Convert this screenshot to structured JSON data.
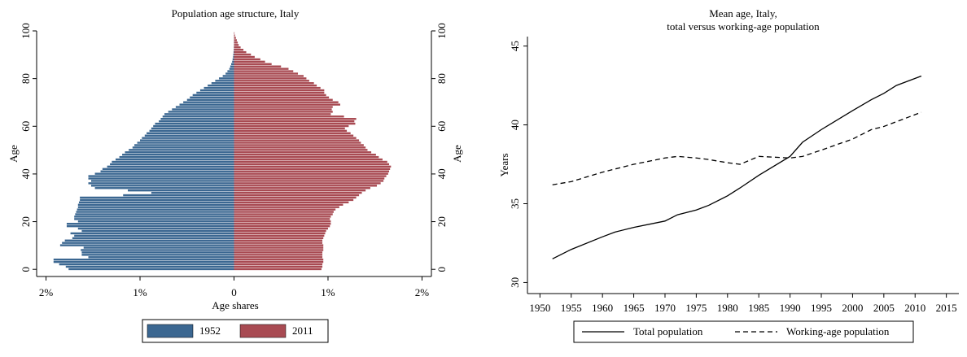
{
  "chart_data": [
    {
      "type": "pyramid",
      "title": "Population age structure, Italy",
      "xlabel": "Age shares",
      "ylabel": "Age",
      "ages": [
        0,
        1,
        2,
        3,
        4,
        5,
        6,
        7,
        8,
        9,
        10,
        11,
        12,
        13,
        14,
        15,
        16,
        17,
        18,
        19,
        20,
        21,
        22,
        23,
        24,
        25,
        26,
        27,
        28,
        29,
        30,
        31,
        32,
        33,
        34,
        35,
        36,
        37,
        38,
        39,
        40,
        41,
        42,
        43,
        44,
        45,
        46,
        47,
        48,
        49,
        50,
        51,
        52,
        53,
        54,
        55,
        56,
        57,
        58,
        59,
        60,
        61,
        62,
        63,
        64,
        65,
        66,
        67,
        68,
        69,
        70,
        71,
        72,
        73,
        74,
        75,
        76,
        77,
        78,
        79,
        80,
        81,
        82,
        83,
        84,
        85,
        86,
        87,
        88,
        89,
        90,
        91,
        92,
        93,
        94,
        95,
        96,
        97,
        98,
        99
      ],
      "series": [
        {
          "name": "1952",
          "color": "#3b6791",
          "values": [
            1.76,
            1.79,
            1.86,
            1.92,
            1.92,
            1.55,
            1.62,
            1.62,
            1.63,
            1.6,
            1.85,
            1.83,
            1.8,
            1.72,
            1.7,
            1.74,
            1.62,
            1.66,
            1.78,
            1.78,
            1.66,
            1.7,
            1.7,
            1.69,
            1.68,
            1.67,
            1.66,
            1.66,
            1.65,
            1.64,
            1.64,
            1.18,
            0.88,
            1.13,
            1.48,
            1.52,
            1.55,
            1.52,
            1.55,
            1.55,
            1.48,
            1.42,
            1.4,
            1.35,
            1.32,
            1.3,
            1.26,
            1.22,
            1.19,
            1.16,
            1.12,
            1.08,
            1.06,
            1.03,
            1.0,
            0.98,
            0.95,
            0.93,
            0.9,
            0.88,
            0.86,
            0.84,
            0.8,
            0.78,
            0.76,
            0.74,
            0.7,
            0.66,
            0.62,
            0.58,
            0.54,
            0.5,
            0.47,
            0.44,
            0.4,
            0.36,
            0.32,
            0.28,
            0.24,
            0.2,
            0.16,
            0.12,
            0.09,
            0.07,
            0.05,
            0.04,
            0.03,
            0.02,
            0.015,
            0.01,
            0.008,
            0.005,
            0.003,
            0.002,
            0.001,
            0.001,
            0.0005,
            0.0003,
            0.0002,
            0.0001
          ]
        },
        {
          "name": "2011",
          "color": "#a84a52",
          "values": [
            0.93,
            0.94,
            0.94,
            0.95,
            0.95,
            0.94,
            0.94,
            0.94,
            0.95,
            0.95,
            0.95,
            0.94,
            0.94,
            0.95,
            0.96,
            0.97,
            0.98,
            1.0,
            1.02,
            1.03,
            1.03,
            1.02,
            1.03,
            1.05,
            1.06,
            1.08,
            1.12,
            1.16,
            1.22,
            1.27,
            1.3,
            1.33,
            1.36,
            1.4,
            1.45,
            1.52,
            1.56,
            1.59,
            1.6,
            1.62,
            1.64,
            1.65,
            1.66,
            1.67,
            1.65,
            1.63,
            1.58,
            1.54,
            1.51,
            1.46,
            1.42,
            1.4,
            1.38,
            1.35,
            1.33,
            1.3,
            1.27,
            1.24,
            1.2,
            1.18,
            1.22,
            1.29,
            1.28,
            1.3,
            1.17,
            1.03,
            1.05,
            1.04,
            1.05,
            1.13,
            1.11,
            1.05,
            1.01,
            0.98,
            0.96,
            0.96,
            0.92,
            0.88,
            0.85,
            0.8,
            0.77,
            0.74,
            0.68,
            0.63,
            0.58,
            0.5,
            0.4,
            0.33,
            0.28,
            0.22,
            0.18,
            0.13,
            0.1,
            0.07,
            0.05,
            0.04,
            0.03,
            0.02,
            0.01,
            0.005
          ]
        }
      ],
      "xlim": [
        -2.1,
        2.1
      ],
      "xticks": [
        {
          "value": -2,
          "label": "2%"
        },
        {
          "value": -1,
          "label": "1%"
        },
        0,
        {
          "value": 1,
          "label": "1%"
        },
        {
          "value": 2,
          "label": "2%"
        }
      ],
      "ylim": [
        -3,
        100
      ],
      "yticks": [
        0,
        20,
        40,
        60,
        80,
        100
      ],
      "legend": "bottom"
    },
    {
      "type": "line",
      "title": [
        "Mean age, Italy,",
        "total versus working-age population"
      ],
      "ylabel": "Years",
      "x": [
        1952,
        1955,
        1960,
        1962,
        1965,
        1970,
        1972,
        1975,
        1977,
        1980,
        1982,
        1985,
        1990,
        1992,
        1995,
        2000,
        2003,
        2005,
        2007,
        2011
      ],
      "series": [
        {
          "name": "Total population",
          "color": "#000000",
          "linestyle": "solid",
          "values": [
            31.5,
            32.1,
            32.9,
            33.2,
            33.5,
            33.9,
            34.3,
            34.6,
            34.9,
            35.5,
            36.0,
            36.8,
            38.0,
            38.9,
            39.7,
            40.9,
            41.6,
            42.0,
            42.5,
            43.1
          ]
        },
        {
          "name": "Working-age population",
          "color": "#000000",
          "linestyle": "dashed",
          "values": [
            36.2,
            36.4,
            37.0,
            37.2,
            37.5,
            37.9,
            38.0,
            37.9,
            37.8,
            37.6,
            37.5,
            38.0,
            37.9,
            38.0,
            38.4,
            39.1,
            39.7,
            39.9,
            40.2,
            40.8
          ]
        }
      ],
      "xlim": [
        1948,
        2017
      ],
      "xticks": [
        1950,
        1955,
        1960,
        1965,
        1970,
        1975,
        1980,
        1985,
        1990,
        1995,
        2000,
        2005,
        2010,
        2015
      ],
      "ylim": [
        29.3,
        45.6
      ],
      "yticks": [
        30,
        35,
        40,
        45
      ],
      "legend": "bottom"
    }
  ]
}
